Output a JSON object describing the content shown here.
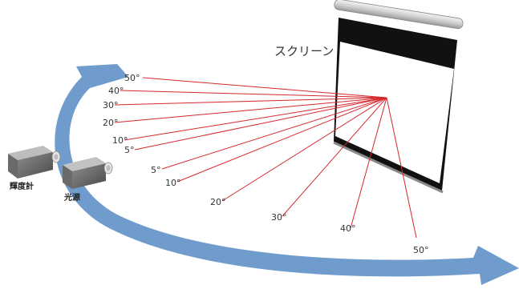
{
  "screen": {
    "title": "スクリーン"
  },
  "devices": {
    "luminance_meter": "輝度計",
    "light_source": "光源"
  },
  "angles": {
    "upper": [
      "50°",
      "40°",
      "30°",
      "20°",
      "10°",
      "5°"
    ],
    "lower": [
      "5°",
      "10°",
      "20°",
      "30°",
      "40°",
      "50°"
    ]
  },
  "colors": {
    "ray": "#d6282e",
    "arrow": "#6f9ccc",
    "screen_frame": "#111111"
  }
}
